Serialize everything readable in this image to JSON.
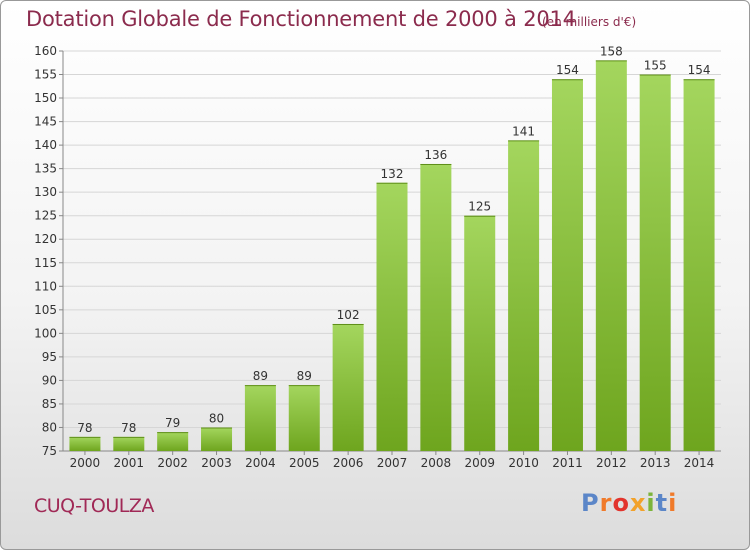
{
  "title": "Dotation Globale de Fonctionnement de 2000 à 2014",
  "subtitle": "(en milliers d'€)",
  "footer": {
    "city": "CUQ-TOULZA",
    "logo_text": "Proxiti"
  },
  "colors": {
    "bar_light": "#a4d65e",
    "bar_dark": "#6ea51e",
    "title": "#8b2b4d",
    "city": "#a02956"
  },
  "chart_data": {
    "type": "bar",
    "title": "Dotation Globale de Fonctionnement de 2000 à 2014",
    "subtitle": "(en milliers d'€)",
    "categories": [
      "2000",
      "2001",
      "2002",
      "2003",
      "2004",
      "2005",
      "2006",
      "2007",
      "2008",
      "2009",
      "2010",
      "2011",
      "2012",
      "2013",
      "2014"
    ],
    "values": [
      78,
      78,
      79,
      80,
      89,
      89,
      102,
      132,
      136,
      125,
      141,
      154,
      158,
      155,
      154
    ],
    "ylim": [
      75,
      160
    ],
    "yticks": [
      75,
      80,
      85,
      90,
      95,
      100,
      105,
      110,
      115,
      120,
      125,
      130,
      135,
      140,
      145,
      150,
      155,
      160
    ],
    "grid": true,
    "xlabel": "",
    "ylabel": ""
  }
}
